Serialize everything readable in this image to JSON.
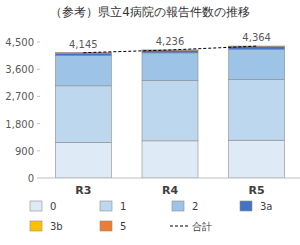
{
  "chart_data": {
    "type": "bar",
    "title": "（参考）県立4病院の報告件数の推移",
    "categories": [
      "R3",
      "R4",
      "R5"
    ],
    "stacked": true,
    "grid": false,
    "legend": "bottom",
    "ylim": [
      0,
      4500
    ],
    "yticks": [
      0,
      {
        "value": 900,
        "label": "900"
      },
      {
        "value": 1800,
        "label": "1,800"
      },
      {
        "value": 2700,
        "label": "2,700"
      },
      {
        "value": 3600,
        "label": "3,600"
      },
      {
        "value": 4500,
        "label": "4,500"
      }
    ],
    "series": [
      {
        "name": "0",
        "color": "#deebf7",
        "values": [
          1180,
          1230,
          1250
        ]
      },
      {
        "name": "1",
        "color": "#bdd7ee",
        "values": [
          1870,
          1990,
          2010
        ]
      },
      {
        "name": "2",
        "color": "#9dc3e6",
        "values": [
          1000,
          920,
          1000
        ]
      },
      {
        "name": "3a",
        "color": "#4472c4",
        "values": [
          80,
          80,
          90
        ]
      },
      {
        "name": "3b",
        "color": "#ffc000",
        "values": [
          10,
          10,
          10
        ]
      },
      {
        "name": "5",
        "color": "#ed7d31",
        "values": [
          5,
          6,
          4
        ]
      },
      {
        "name": "合計",
        "type": "line",
        "line_style": "dashed",
        "color": "#000000",
        "data_labels": true,
        "values": [
          4145,
          4236,
          4364
        ],
        "value_labels": [
          "4,145",
          "4,236",
          "4,364"
        ]
      }
    ]
  }
}
